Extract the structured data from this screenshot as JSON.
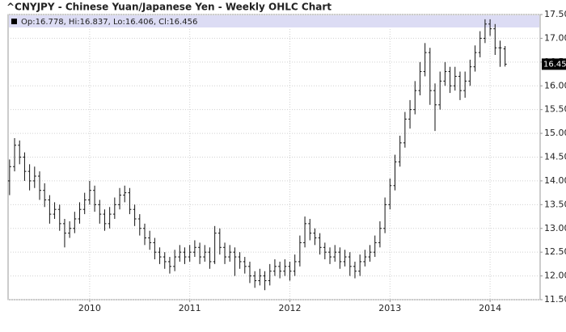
{
  "chart_data": {
    "type": "ohlc",
    "title": "^CNYJPY - Chinese Yuan/Japanese Yen - Weekly OHLC Chart",
    "last_bar_label": "Op:16.778, Hi:16.837, Lo:16.406, Cl:16.456",
    "color": "#111111",
    "grid": true,
    "xlim": [
      2009.185,
      2014.5
    ],
    "xticks": [
      2010,
      2011,
      2012,
      2013,
      2014
    ],
    "ylim": [
      11.5,
      17.5
    ],
    "yticks": [
      {
        "value": 11.5,
        "label": "11.500"
      },
      {
        "value": 12,
        "label": "12.000"
      },
      {
        "value": 12.5,
        "label": "12.500"
      },
      {
        "value": 13,
        "label": "13.000"
      },
      {
        "value": 13.5,
        "label": "13.500"
      },
      {
        "value": 14,
        "label": "14.000"
      },
      {
        "value": 14.5,
        "label": "14.500"
      },
      {
        "value": 15,
        "label": "15.000"
      },
      {
        "value": 15.5,
        "label": "15.500"
      },
      {
        "value": 16,
        "label": "16.000"
      },
      {
        "value": 16.5,
        "label": "16.500"
      },
      {
        "value": 17,
        "label": "17.000"
      },
      {
        "value": 17.5,
        "label": "17.500"
      }
    ],
    "x": [
      2009.2,
      2009.25,
      2009.3,
      2009.35,
      2009.4,
      2009.45,
      2009.5,
      2009.55,
      2009.6,
      2009.65,
      2009.7,
      2009.75,
      2009.8,
      2009.85,
      2009.9,
      2009.95,
      2010.0,
      2010.05,
      2010.1,
      2010.15,
      2010.2,
      2010.25,
      2010.3,
      2010.35,
      2010.4,
      2010.45,
      2010.5,
      2010.55,
      2010.6,
      2010.65,
      2010.7,
      2010.75,
      2010.8,
      2010.85,
      2010.9,
      2010.95,
      2011.0,
      2011.05,
      2011.1,
      2011.15,
      2011.2,
      2011.25,
      2011.3,
      2011.35,
      2011.4,
      2011.45,
      2011.5,
      2011.55,
      2011.6,
      2011.65,
      2011.7,
      2011.75,
      2011.8,
      2011.85,
      2011.9,
      2011.95,
      2012.0,
      2012.05,
      2012.1,
      2012.15,
      2012.2,
      2012.25,
      2012.3,
      2012.35,
      2012.4,
      2012.45,
      2012.5,
      2012.55,
      2012.6,
      2012.65,
      2012.7,
      2012.75,
      2012.8,
      2012.85,
      2012.9,
      2012.95,
      2013.0,
      2013.05,
      2013.1,
      2013.15,
      2013.2,
      2013.25,
      2013.3,
      2013.35,
      2013.4,
      2013.45,
      2013.5,
      2013.55,
      2013.6,
      2013.65,
      2013.7,
      2013.75,
      2013.8,
      2013.85,
      2013.9,
      2013.95,
      2014.0,
      2014.05,
      2014.1,
      2014.15
    ],
    "open": [
      14.0,
      14.3,
      14.75,
      14.5,
      14.2,
      14.0,
      14.1,
      13.8,
      13.6,
      13.3,
      13.4,
      13.1,
      12.9,
      13.0,
      13.2,
      13.4,
      13.6,
      13.8,
      13.5,
      13.3,
      13.1,
      13.3,
      13.5,
      13.7,
      13.75,
      13.4,
      13.2,
      13.0,
      12.8,
      12.7,
      12.5,
      12.4,
      12.3,
      12.2,
      12.4,
      12.5,
      12.4,
      12.5,
      12.6,
      12.4,
      12.5,
      12.3,
      12.9,
      12.6,
      12.4,
      12.5,
      12.4,
      12.3,
      12.2,
      12.0,
      11.9,
      12.0,
      11.9,
      12.1,
      12.2,
      12.1,
      12.2,
      12.1,
      12.3,
      12.7,
      13.1,
      12.9,
      12.8,
      12.6,
      12.5,
      12.4,
      12.5,
      12.3,
      12.4,
      12.2,
      12.1,
      12.3,
      12.4,
      12.5,
      12.7,
      13.0,
      13.5,
      13.9,
      14.4,
      14.8,
      15.3,
      15.5,
      15.9,
      16.3,
      16.7,
      15.9,
      15.6,
      16.1,
      16.3,
      16.0,
      16.2,
      15.9,
      16.1,
      16.4,
      16.7,
      17.0,
      17.3,
      17.2,
      16.8,
      16.778
    ],
    "high": [
      14.45,
      14.9,
      14.85,
      14.6,
      14.35,
      14.3,
      14.2,
      13.95,
      13.7,
      13.55,
      13.5,
      13.2,
      13.15,
      13.35,
      13.55,
      13.75,
      14.0,
      13.9,
      13.6,
      13.4,
      13.45,
      13.65,
      13.85,
      13.9,
      13.85,
      13.5,
      13.3,
      13.1,
      12.95,
      12.8,
      12.6,
      12.5,
      12.4,
      12.55,
      12.65,
      12.6,
      12.65,
      12.75,
      12.7,
      12.65,
      12.6,
      13.05,
      13.0,
      12.7,
      12.65,
      12.6,
      12.5,
      12.4,
      12.3,
      12.1,
      12.15,
      12.1,
      12.25,
      12.35,
      12.3,
      12.35,
      12.3,
      12.45,
      12.85,
      13.25,
      13.2,
      13.0,
      12.9,
      12.7,
      12.6,
      12.65,
      12.6,
      12.55,
      12.5,
      12.3,
      12.45,
      12.55,
      12.65,
      12.85,
      13.15,
      13.65,
      14.05,
      14.55,
      14.95,
      15.45,
      15.7,
      16.1,
      16.5,
      16.9,
      16.8,
      16.05,
      16.3,
      16.5,
      16.4,
      16.4,
      16.3,
      16.3,
      16.55,
      16.85,
      17.15,
      17.4,
      17.4,
      17.3,
      16.95,
      16.837
    ],
    "low": [
      13.7,
      14.2,
      14.35,
      14.0,
      13.8,
      13.85,
      13.6,
      13.45,
      13.1,
      13.2,
      12.95,
      12.6,
      12.8,
      12.9,
      13.1,
      13.3,
      13.5,
      13.35,
      13.1,
      12.95,
      13.0,
      13.2,
      13.4,
      13.55,
      13.3,
      13.05,
      12.85,
      12.65,
      12.55,
      12.35,
      12.25,
      12.15,
      12.05,
      12.1,
      12.3,
      12.25,
      12.3,
      12.4,
      12.25,
      12.3,
      12.15,
      12.25,
      12.45,
      12.25,
      12.3,
      12.0,
      12.15,
      12.05,
      11.85,
      11.75,
      11.8,
      11.7,
      11.8,
      12.0,
      11.95,
      12.0,
      11.9,
      12.0,
      12.2,
      12.6,
      12.75,
      12.65,
      12.45,
      12.35,
      12.25,
      12.3,
      12.15,
      12.2,
      12.0,
      11.95,
      12.0,
      12.2,
      12.3,
      12.4,
      12.6,
      12.9,
      13.4,
      13.8,
      14.3,
      14.7,
      15.1,
      15.4,
      15.8,
      16.2,
      15.6,
      15.05,
      15.5,
      16.0,
      15.85,
      15.9,
      15.7,
      15.75,
      16.0,
      16.3,
      16.6,
      16.9,
      17.05,
      16.65,
      16.4,
      16.406
    ],
    "close": [
      14.3,
      14.75,
      14.5,
      14.2,
      14.0,
      14.1,
      13.8,
      13.6,
      13.3,
      13.4,
      13.1,
      12.9,
      13.0,
      13.2,
      13.4,
      13.6,
      13.8,
      13.5,
      13.3,
      13.1,
      13.3,
      13.5,
      13.7,
      13.75,
      13.4,
      13.2,
      13.0,
      12.8,
      12.7,
      12.5,
      12.4,
      12.3,
      12.2,
      12.4,
      12.5,
      12.4,
      12.5,
      12.6,
      12.4,
      12.5,
      12.3,
      12.9,
      12.6,
      12.4,
      12.5,
      12.4,
      12.3,
      12.2,
      12.0,
      11.9,
      12.0,
      11.9,
      12.1,
      12.2,
      12.1,
      12.2,
      12.1,
      12.3,
      12.7,
      13.1,
      12.9,
      12.8,
      12.6,
      12.5,
      12.4,
      12.5,
      12.3,
      12.4,
      12.2,
      12.1,
      12.3,
      12.4,
      12.5,
      12.7,
      13.0,
      13.5,
      13.9,
      14.4,
      14.8,
      15.3,
      15.5,
      15.9,
      16.3,
      16.7,
      15.9,
      15.6,
      16.1,
      16.3,
      16.0,
      16.2,
      15.9,
      16.1,
      16.4,
      16.7,
      17.0,
      17.3,
      17.2,
      16.8,
      16.8,
      16.456
    ]
  }
}
